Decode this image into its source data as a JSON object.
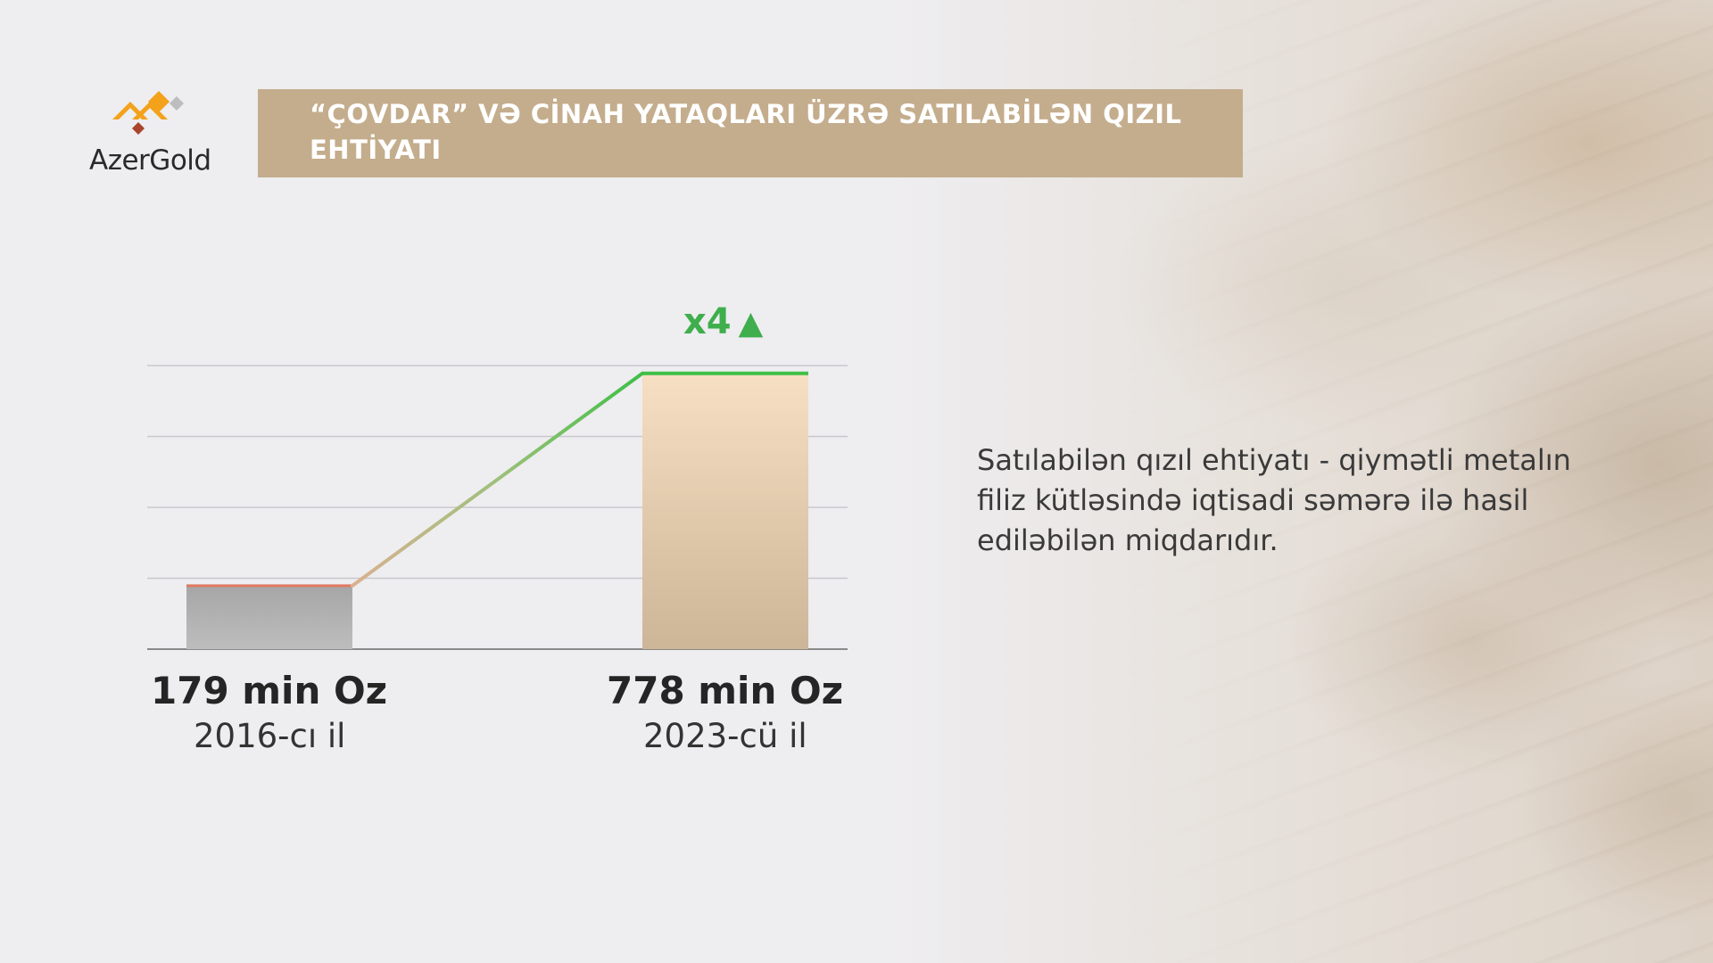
{
  "brand": {
    "name": "AzerGold",
    "colors": {
      "orange": "#f3a21a",
      "red": "#a8452c",
      "gray": "#b9b9b9"
    }
  },
  "header": {
    "title": "“ÇOVDAR” VƏ CİNAH YATAQLARI ÜZRƏ SATILABİLƏN QIZIL EHTİYATI",
    "background": "#c4ad8d"
  },
  "chart_data": {
    "type": "bar",
    "categories": [
      "2016-cı il",
      "2023-cü il"
    ],
    "values": [
      179,
      778
    ],
    "value_labels": [
      "179 min Oz",
      "778 min Oz"
    ],
    "ylim": [
      0,
      800
    ],
    "grid": true,
    "annotation": "x4",
    "annotation_icon": "up-triangle-icon",
    "colors": {
      "bar_2016": "#a8a8a8",
      "bar_2023": "#f2dcc2",
      "trend": "#3fbf46",
      "accent": "#e07a5f"
    }
  },
  "description": "Satılabilən qızıl ehtiyatı - qiymətli metalın filiz kütləsində iqtisadi səmərə ilə hasil ediləbilən miqdarıdır."
}
